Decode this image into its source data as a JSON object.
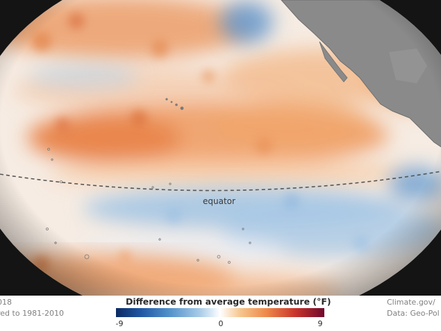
{
  "map": {
    "equator_label": "equator"
  },
  "footer": {
    "left_line1": "018",
    "left_line2": "red to 1981-2010",
    "right_line1": "Climate.gov/",
    "right_line2": "Data: Geo-Pol"
  },
  "legend": {
    "title": "Difference from average temperature (°F)",
    "ticks": [
      "-9",
      "0",
      "9"
    ],
    "scale_colors": [
      "#0b2a63",
      "#1f57a4",
      "#4f8fc9",
      "#a6cbe7",
      "#ffffff",
      "#f6c48a",
      "#ee8a4b",
      "#c9342c",
      "#6e0a2d"
    ]
  }
}
